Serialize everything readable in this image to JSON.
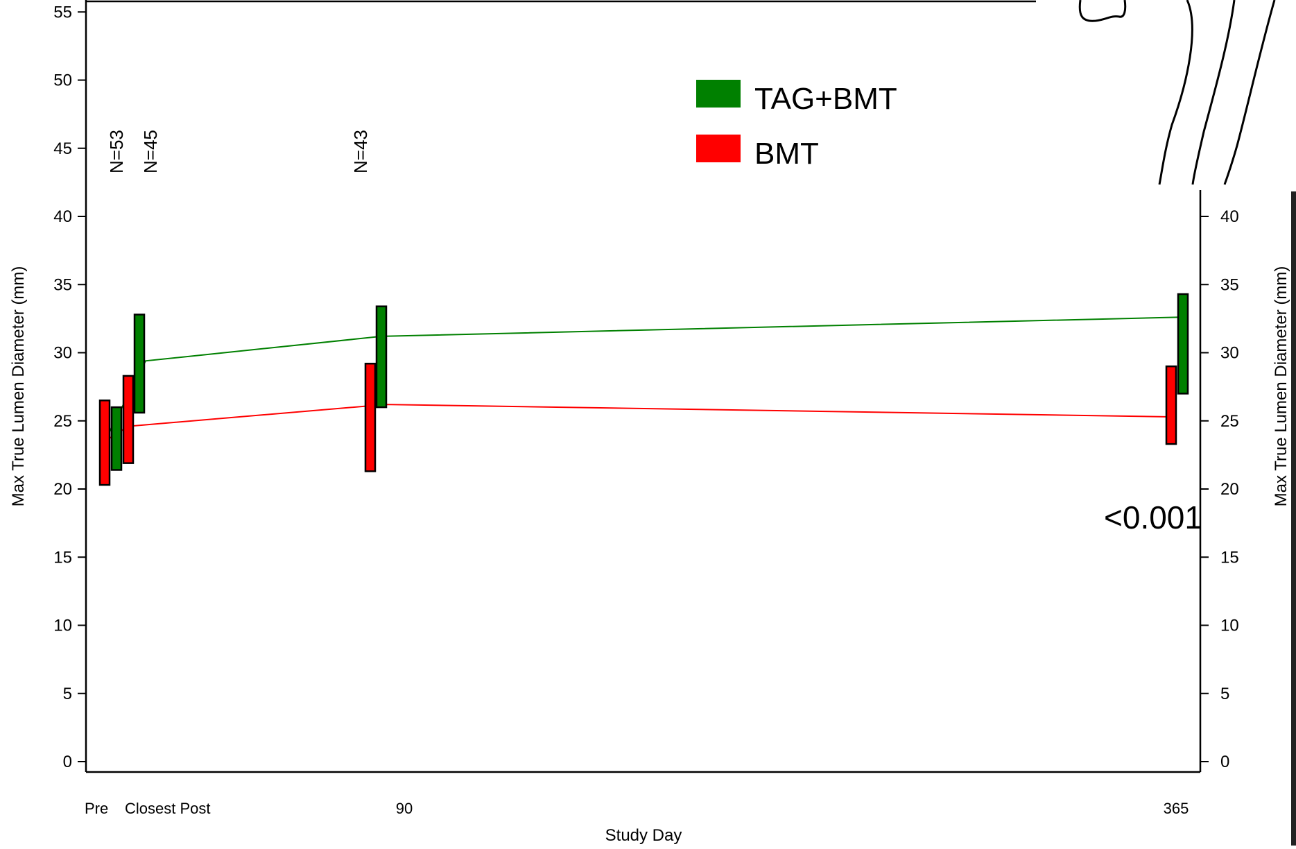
{
  "chart_data": {
    "type": "bar",
    "title": "",
    "xlabel": "Study Day",
    "ylabel": "Max True Lumen Diameter (mm)",
    "ylabel_right": "Max True Lumen Diameter (mm)",
    "ylim": [
      0,
      55
    ],
    "ylim_right": [
      0,
      40
    ],
    "yticks": [
      "0",
      "5",
      "10",
      "15",
      "20",
      "25",
      "30",
      "35",
      "40",
      "45",
      "50",
      "55"
    ],
    "yticks_right": [
      "0",
      "5",
      "10",
      "15",
      "20",
      "25",
      "30",
      "35",
      "40"
    ],
    "categories": [
      "Pre",
      "Closest Post",
      "90",
      "365"
    ],
    "grid": false,
    "legend_position": "top-right",
    "series": [
      {
        "name": "TAG+BMT",
        "color": "#008000",
        "points": [
          {
            "x": "Pre",
            "low": 21.4,
            "high": 26.0
          },
          {
            "x": "Closest Post",
            "low": 25.6,
            "high": 32.8
          },
          {
            "x": "90",
            "low": 26.0,
            "high": 33.4
          },
          {
            "x": "365",
            "low": 27.0,
            "high": 34.3
          }
        ],
        "mean_line": [
          {
            "x": "Pre",
            "y": 23.5
          },
          {
            "x": "Closest Post",
            "y": 29.4
          },
          {
            "x": "90",
            "y": 31.2
          },
          {
            "x": "365",
            "y": 32.6
          }
        ]
      },
      {
        "name": "BMT",
        "color": "#ff0000",
        "points": [
          {
            "x": "Pre",
            "low": 20.3,
            "high": 26.5
          },
          {
            "x": "Closest Post",
            "low": 21.9,
            "high": 28.3
          },
          {
            "x": "90",
            "low": 21.3,
            "high": 29.2
          },
          {
            "x": "365",
            "low": 23.3,
            "high": 29.0
          }
        ],
        "mean_line": [
          {
            "x": "Pre",
            "y": 23.5
          },
          {
            "x": "Closest Post",
            "y": 24.6
          },
          {
            "x": "90",
            "y": 26.2
          },
          {
            "x": "365",
            "y": 25.3
          }
        ]
      }
    ],
    "annotations": {
      "n_labels": [
        "N=53",
        "N=45",
        "N=43"
      ],
      "p_value": "<0.001"
    }
  }
}
